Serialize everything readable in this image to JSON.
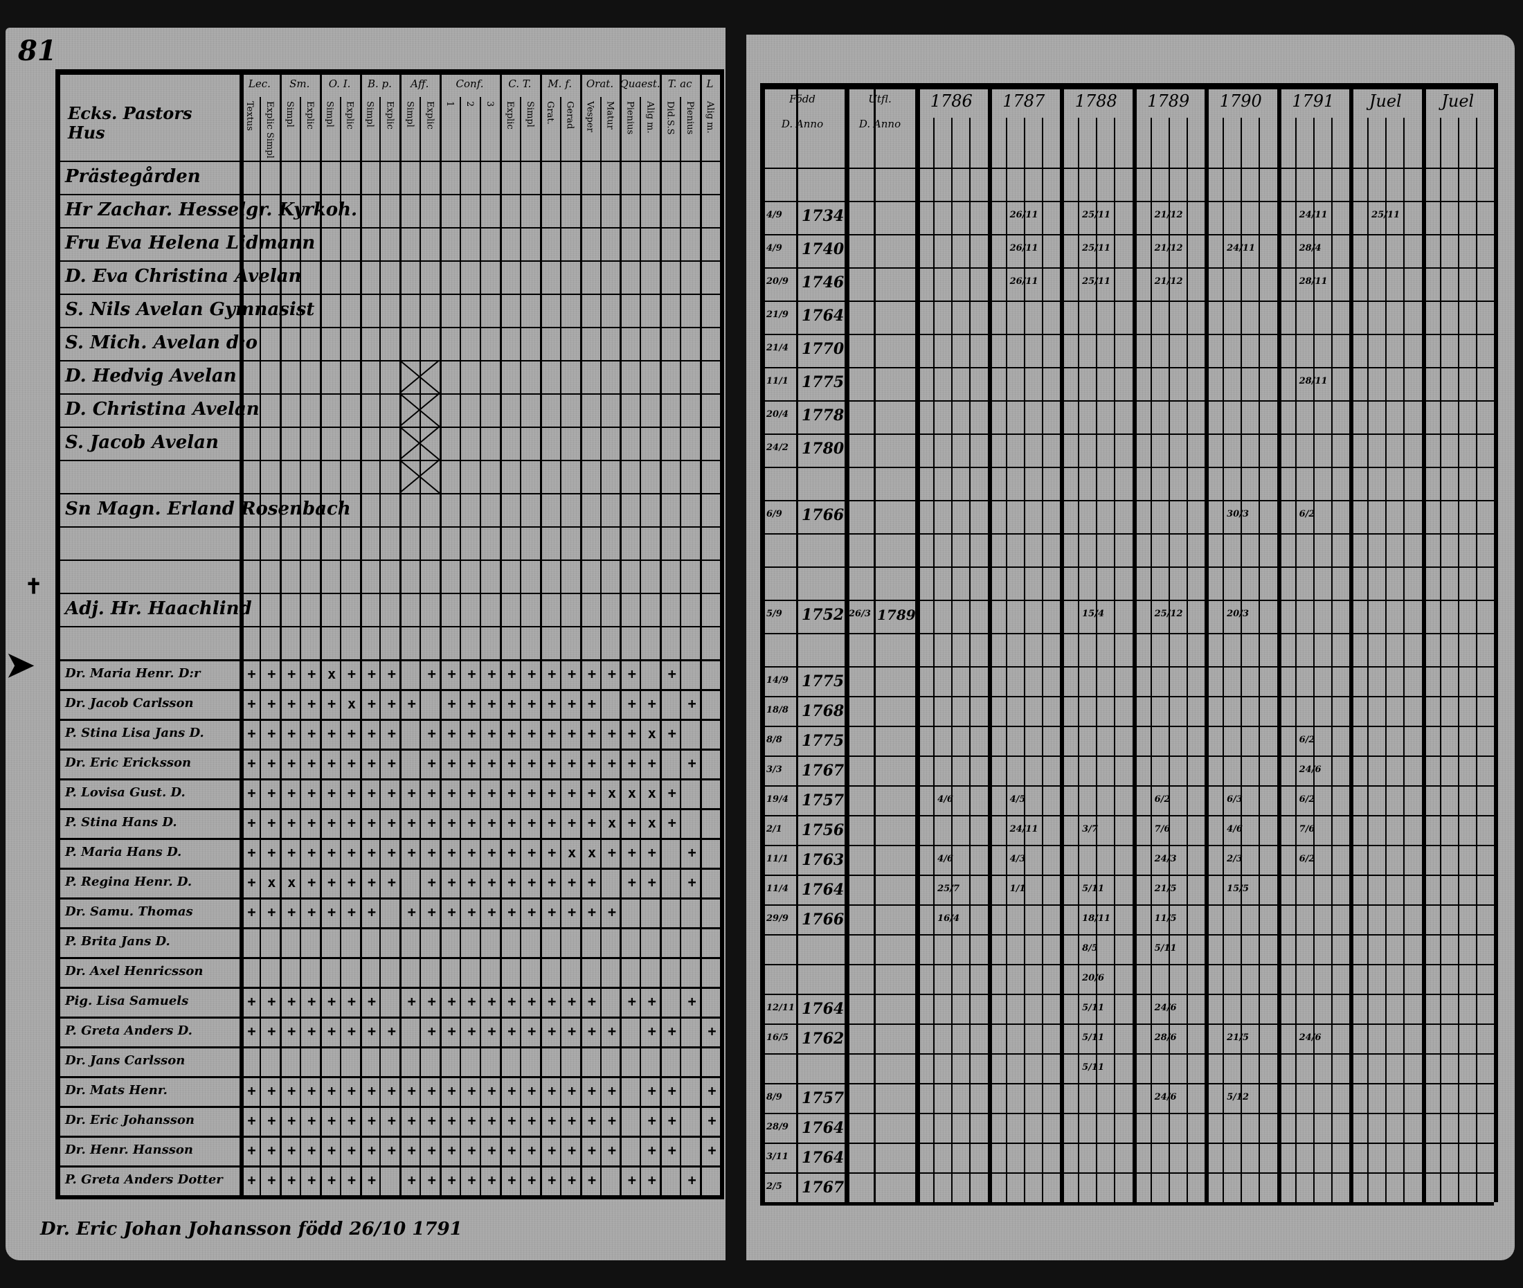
{
  "left_page": {
    "folio": "81",
    "title": "Ecks. Pastors Hus",
    "columns": [
      {
        "label": "Lec.",
        "subs": [
          "Textus",
          "Explic Simpl"
        ]
      },
      {
        "label": "Sm.",
        "subs": [
          "Simpl",
          "Explic"
        ]
      },
      {
        "label": "O. I.",
        "subs": [
          "Simpl",
          "Explic"
        ]
      },
      {
        "label": "B. p.",
        "subs": [
          "Simpl",
          "Explic"
        ]
      },
      {
        "label": "Aff.",
        "subs": [
          "Simpl",
          "Explic"
        ]
      },
      {
        "label": "Conf.",
        "subs": [
          "1",
          "2",
          "3"
        ]
      },
      {
        "label": "C. T.",
        "subs": [
          "Explic",
          "Simpl"
        ]
      },
      {
        "label": "M. f.",
        "subs": [
          "Grat.",
          "Gerad"
        ]
      },
      {
        "label": "Orat.",
        "subs": [
          "Vesper",
          "Matur"
        ]
      },
      {
        "label": "Quaest.",
        "subs": [
          "Pienius",
          "Alig m."
        ]
      },
      {
        "label": "T. ac",
        "subs": [
          "Did.S.S",
          "Pienius"
        ]
      },
      {
        "label": "L",
        "subs": [
          "Alig m."
        ]
      }
    ],
    "rows": [
      {
        "name": "Prästegården",
        "marks": ""
      },
      {
        "name": "Hr Zachar. Hesselgr. Kyrkoh.",
        "marks": ""
      },
      {
        "name": "Fru Eva Helena Lidmann",
        "marks": ""
      },
      {
        "name": "D. Eva Christina Avelan",
        "marks": ""
      },
      {
        "name": "S. Nils Avelan Gymnasist",
        "marks": ""
      },
      {
        "name": "S. Mich. Avelan d:o",
        "marks": ""
      },
      {
        "name": "D. Hedvig Avelan",
        "marks": ""
      },
      {
        "name": "D. Christina Avelan",
        "marks": ""
      },
      {
        "name": "S. Jacob Avelan",
        "marks": ""
      },
      {
        "name": "",
        "marks": ""
      },
      {
        "name": "Sn Magn. Erland Rosenbach",
        "marks": ""
      },
      {
        "name": "",
        "marks": ""
      },
      {
        "name": "",
        "marks": ""
      },
      {
        "name": "Adj. Hr. Haachlind",
        "marks": ""
      },
      {
        "name": "",
        "marks": ""
      },
      {
        "name": "Dr. Maria Henr. D:r",
        "marks": "++++x+++ +++++++++++ +"
      },
      {
        "name": "Dr. Jacob Carlsson",
        "marks": "+++++x+++ ++++++++ ++ +"
      },
      {
        "name": "P. Stina Lisa Jans D.",
        "marks": "++++++++ +++++++++++x+"
      },
      {
        "name": "Dr. Eric Ericksson",
        "marks": "++++++++ ++++++++++++ +"
      },
      {
        "name": "P. Lovisa Gust. D.",
        "marks": "++++++++++++++++++xxx+"
      },
      {
        "name": "P. Stina Hans D.",
        "marks": "++++++++++++++++++x+x+"
      },
      {
        "name": "P. Maria Hans D.",
        "marks": "++++++++++++++++xx+++ +"
      },
      {
        "name": "P. Regina Henr. D.",
        "marks": "+xx+++++ +++++++++ ++ +"
      },
      {
        "name": "Dr. Samu. Thomas",
        "marks": "+++++++ +++++++++++"
      },
      {
        "name": "P. Brita Jans D.",
        "marks": ""
      },
      {
        "name": "Dr. Axel Henricsson",
        "marks": ""
      },
      {
        "name": "Pig. Lisa Samuels",
        "marks": "+++++++ ++++++++++ ++ +"
      },
      {
        "name": "P. Greta Anders D.",
        "marks": "++++++++ ++++++++++ ++ +"
      },
      {
        "name": "Dr. Jans Carlsson",
        "marks": ""
      },
      {
        "name": "Dr. Mats Henr.",
        "marks": "+++++++++++++++++++ ++ +"
      },
      {
        "name": "Dr. Eric Johansson",
        "marks": "+++++++++++++++++++ ++ +"
      },
      {
        "name": "Dr. Henr. Hansson",
        "marks": "+++++++++++++++++++ ++ +"
      },
      {
        "name": "P. Greta Anders Dotter",
        "marks": "+++++++ ++++++++++ ++ +"
      }
    ],
    "footnote": "Dr. Eric Johan Johansson född 26/10 1791"
  },
  "right_page": {
    "born_header": "Född",
    "born_sub": "D. Anno",
    "out_header": "Utfl.",
    "out_sub": "D. Anno",
    "years": [
      "1786",
      "1787",
      "1788",
      "1789",
      "1790",
      "1791",
      "Juel",
      "Juel"
    ],
    "rows": [
      {
        "day": "",
        "year": "",
        "visits": {}
      },
      {
        "day": "4/9",
        "year": "1734",
        "visits": {
          "1787": "26/11",
          "1788": "25/11",
          "1789": "21/12",
          "1791": "24/11",
          "Juel": "25/11"
        }
      },
      {
        "day": "4/9",
        "year": "1740",
        "visits": {
          "1787": "26/11",
          "1788": "25/11",
          "1789": "21/12",
          "1790": "24/11",
          "1791": "28/4"
        }
      },
      {
        "day": "20/9",
        "year": "1746",
        "visits": {
          "1787": "26/11",
          "1788": "25/11",
          "1789": "21/12",
          "1791": "28/11"
        }
      },
      {
        "day": "21/9",
        "year": "1764",
        "visits": {}
      },
      {
        "day": "21/4",
        "year": "1770",
        "visits": {}
      },
      {
        "day": "11/1",
        "year": "1775",
        "visits": {
          "1791": "28/11"
        }
      },
      {
        "day": "20/4",
        "year": "1778",
        "visits": {}
      },
      {
        "day": "24/2",
        "year": "1780",
        "visits": {}
      },
      {
        "day": "",
        "year": "",
        "visits": {}
      },
      {
        "day": "6/9",
        "year": "1766",
        "visits": {
          "1790": "30/3",
          "1791": "6/2"
        }
      },
      {
        "day": "",
        "year": "",
        "visits": {}
      },
      {
        "day": "",
        "year": "",
        "visits": {}
      },
      {
        "day": "5/9",
        "year": "1752",
        "out_day": "26/3",
        "out_year": "1789",
        "visits": {
          "1788": "15/4",
          "1789": "25/12",
          "1790": "20/3"
        }
      },
      {
        "day": "",
        "year": "",
        "visits": {}
      },
      {
        "day": "14/9",
        "year": "1775",
        "visits": {}
      },
      {
        "day": "18/8",
        "year": "1768",
        "visits": {}
      },
      {
        "day": "8/8",
        "year": "1775",
        "visits": {
          "1791": "6/2"
        }
      },
      {
        "day": "3/3",
        "year": "1767",
        "visits": {
          "1791": "24/6"
        }
      },
      {
        "day": "19/4",
        "year": "1757",
        "visits": {
          "1786": "4/6",
          "1787": "4/5",
          "1789": "6/2",
          "1790": "6/3",
          "1791": "6/2"
        }
      },
      {
        "day": "2/1",
        "year": "1756",
        "visits": {
          "1787": "24/11",
          "1788": "3/7",
          "1789": "7/6",
          "1790": "4/6",
          "1791": "7/6"
        }
      },
      {
        "day": "11/1",
        "year": "1763",
        "visits": {
          "1786": "4/6",
          "1787": "4/3",
          "1789": "24/3",
          "1790": "2/3",
          "1791": "6/2"
        }
      },
      {
        "day": "11/4",
        "year": "1764",
        "visits": {
          "1786": "25/7",
          "1787": "1/1",
          "1788": "5/11",
          "1789": "21/5",
          "1790": "15/5"
        }
      },
      {
        "day": "29/9",
        "year": "1766",
        "visits": {
          "1786": "16/4",
          "1788": "18/11",
          "1789": "11/5"
        }
      },
      {
        "day": "",
        "year": "",
        "visits": {
          "1788": "8/5",
          "1789": "5/11"
        }
      },
      {
        "day": "",
        "year": "",
        "visits": {
          "1788": "20/6"
        }
      },
      {
        "day": "12/11",
        "year": "1764",
        "visits": {
          "1788": "5/11",
          "1789": "24/6"
        }
      },
      {
        "day": "16/5",
        "year": "1762",
        "visits": {
          "1788": "5/11",
          "1789": "28/6",
          "1790": "21/5",
          "1791": "24/6"
        }
      },
      {
        "day": "",
        "year": "",
        "visits": {
          "1788": "5/11"
        }
      },
      {
        "day": "8/9",
        "year": "1757",
        "visits": {
          "1789": "24/6",
          "1790": "5/12"
        }
      },
      {
        "day": "28/9",
        "year": "1764",
        "visits": {}
      },
      {
        "day": "3/11",
        "year": "1764",
        "visits": {}
      },
      {
        "day": "2/5",
        "year": "1767",
        "visits": {}
      }
    ]
  },
  "colors": {
    "paper": "#a8a8a8",
    "ink": "#000000",
    "background": "#111111"
  }
}
